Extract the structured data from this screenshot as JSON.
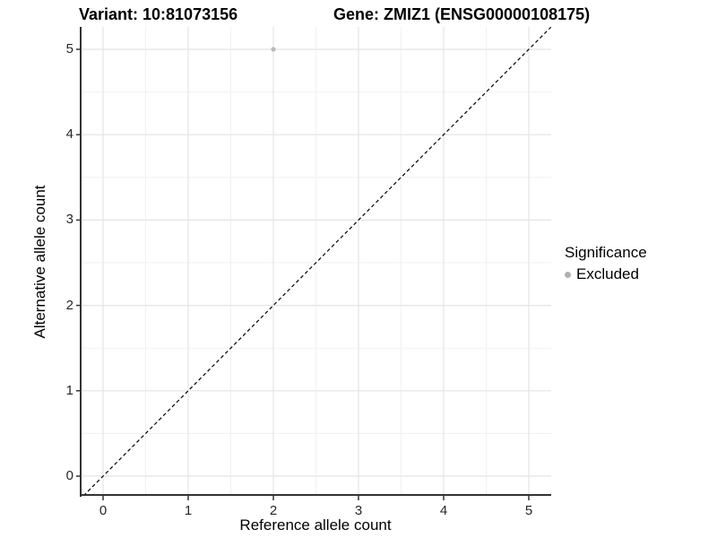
{
  "header": {
    "variant_title": "Variant: 10:81073156",
    "gene_title": "Gene: ZMIZ1 (ENSG00000108175)"
  },
  "chart_data": {
    "type": "scatter",
    "title": "Variant: 10:81073156   Gene: ZMIZ1 (ENSG00000108175)",
    "xlabel": "Reference allele count",
    "ylabel": "Alternative allele count",
    "x_ticks": [
      0,
      1,
      2,
      3,
      4,
      5
    ],
    "y_ticks": [
      0,
      1,
      2,
      3,
      4,
      5
    ],
    "xlim": [
      -0.26,
      5.26
    ],
    "ylim": [
      -0.23,
      5.26
    ],
    "grid": {
      "major": true,
      "minor": true
    },
    "series": [
      {
        "name": "Excluded",
        "color": "#bababa",
        "points": [
          {
            "x": 2,
            "y": 5
          }
        ]
      }
    ],
    "reference_line": {
      "kind": "identity",
      "equation": "y = x",
      "style": "dashed",
      "color": "#000000"
    },
    "legend": {
      "position": "right",
      "title": "Significance",
      "entries": [
        {
          "label": "Excluded",
          "color": "#b0b0b0",
          "marker": "circle"
        }
      ]
    }
  },
  "colors": {
    "background": "#ffffff",
    "grid_major": "#e4e4e4",
    "grid_minor": "#f1f1f1",
    "axis_line": "#333333",
    "tick_mark": "#333333",
    "tick_text": "#262626",
    "title_text": "#000000"
  }
}
